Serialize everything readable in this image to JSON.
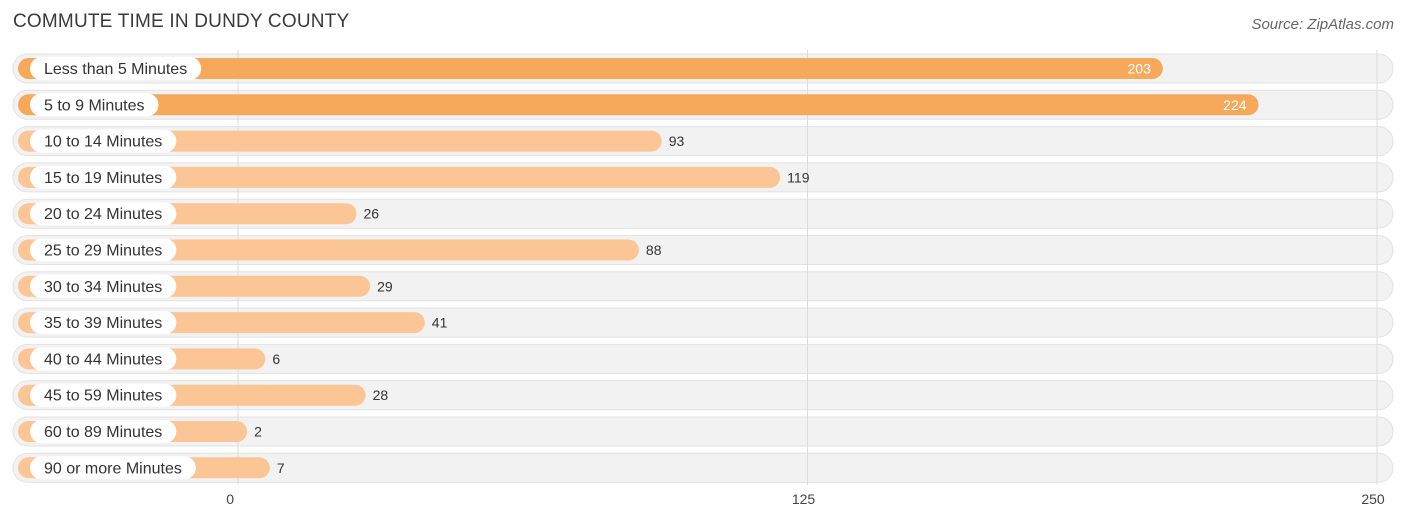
{
  "header": {
    "title": "COMMUTE TIME IN DUNDY COUNTY",
    "source": "Source: ZipAtlas.com"
  },
  "colors": {
    "bar_strong": "#f7a95b",
    "bar_light": "#fbc596",
    "track": "#f2f2f2",
    "track_border": "#e2e2e2",
    "grid": "#dcdcdc"
  },
  "chart_data": {
    "type": "bar",
    "orientation": "horizontal",
    "title": "COMMUTE TIME IN DUNDY COUNTY",
    "categories": [
      "Less than 5 Minutes",
      "5 to 9 Minutes",
      "10 to 14 Minutes",
      "15 to 19 Minutes",
      "20 to 24 Minutes",
      "25 to 29 Minutes",
      "30 to 34 Minutes",
      "35 to 39 Minutes",
      "40 to 44 Minutes",
      "45 to 59 Minutes",
      "60 to 89 Minutes",
      "90 or more Minutes"
    ],
    "values": [
      203,
      224,
      93,
      119,
      26,
      88,
      29,
      41,
      6,
      28,
      2,
      7
    ],
    "xlim": [
      0,
      250
    ],
    "ticks": [
      0,
      125,
      250
    ],
    "xlabel": "",
    "ylabel": "",
    "grid": true
  }
}
